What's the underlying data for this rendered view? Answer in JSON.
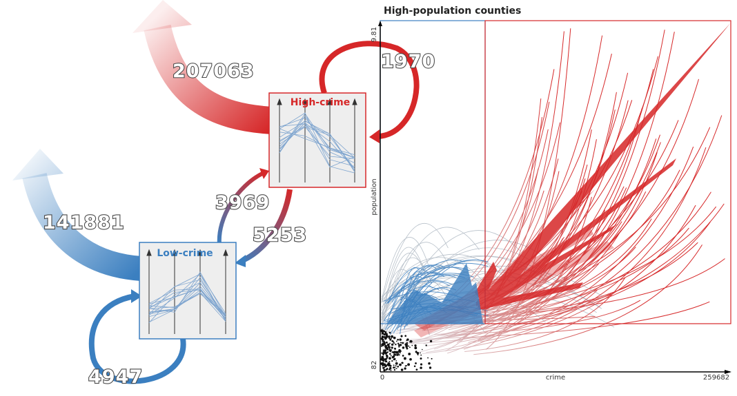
{
  "colors": {
    "high": "#d62728",
    "low": "#3b7fc0",
    "node_bg": "#eeeeee",
    "line_blue": "#6e9ccc"
  },
  "flow_diagram": {
    "nodes": {
      "high": {
        "label": "High-crime"
      },
      "low": {
        "label": "Low-crime"
      }
    },
    "flows": {
      "high_out": "207063",
      "low_out": "141881",
      "high_self": "1970",
      "low_self": "4947",
      "low_to_high": "3969",
      "high_to_low": "5253"
    }
  },
  "scatter": {
    "title": "High-population counties",
    "x_axis": {
      "label": "crime",
      "min_label": "0",
      "max_label": "259682"
    },
    "y_axis": {
      "label": "population",
      "min_label": "82",
      "max_label": "9.81"
    }
  }
}
